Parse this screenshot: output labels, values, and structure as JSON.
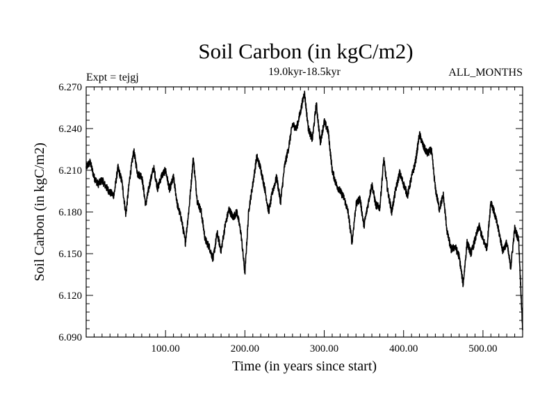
{
  "chart_data": {
    "type": "line",
    "title": "Soil Carbon (in kgC/m2)",
    "subtitle": "19.0kyr-18.5kyr",
    "left_label": "Expt = tejgj",
    "right_label": "ALL_MONTHS",
    "xlabel": "Time (in years since start)",
    "ylabel": "Soil Carbon (in kgC/m2)",
    "xlim": [
      0,
      550
    ],
    "ylim": [
      6.09,
      6.27
    ],
    "x_ticks": [
      100,
      200,
      300,
      400,
      500
    ],
    "x_tick_labels": [
      "100.00",
      "200.00",
      "300.00",
      "400.00",
      "500.00"
    ],
    "y_ticks": [
      6.09,
      6.12,
      6.15,
      6.18,
      6.21,
      6.24,
      6.27
    ],
    "y_tick_labels": [
      "6.090",
      "6.120",
      "6.150",
      "6.180",
      "6.210",
      "6.240",
      "6.270"
    ],
    "line_color": "#000000",
    "series": [
      {
        "name": "Soil Carbon",
        "x": [
          0,
          5,
          10,
          15,
          20,
          25,
          30,
          35,
          40,
          45,
          50,
          55,
          60,
          65,
          70,
          75,
          80,
          85,
          90,
          95,
          100,
          105,
          110,
          115,
          120,
          125,
          130,
          135,
          140,
          145,
          150,
          155,
          160,
          165,
          170,
          175,
          180,
          185,
          190,
          195,
          200,
          205,
          210,
          215,
          220,
          225,
          230,
          235,
          240,
          245,
          250,
          255,
          260,
          265,
          270,
          275,
          280,
          285,
          290,
          295,
          300,
          305,
          310,
          315,
          320,
          325,
          330,
          335,
          340,
          345,
          350,
          355,
          360,
          365,
          370,
          375,
          380,
          385,
          390,
          395,
          400,
          405,
          410,
          415,
          420,
          425,
          430,
          435,
          440,
          445,
          450,
          455,
          460,
          465,
          470,
          475,
          480,
          485,
          490,
          495,
          500,
          505,
          510,
          515,
          520,
          525,
          530,
          535,
          540,
          545,
          550
        ],
        "values": [
          6.212,
          6.216,
          6.205,
          6.2,
          6.203,
          6.198,
          6.194,
          6.192,
          6.212,
          6.202,
          6.178,
          6.205,
          6.224,
          6.207,
          6.206,
          6.185,
          6.2,
          6.212,
          6.197,
          6.206,
          6.21,
          6.196,
          6.205,
          6.185,
          6.175,
          6.158,
          6.185,
          6.219,
          6.188,
          6.18,
          6.16,
          6.155,
          6.146,
          6.165,
          6.152,
          6.17,
          6.182,
          6.176,
          6.18,
          6.165,
          6.136,
          6.182,
          6.2,
          6.22,
          6.211,
          6.197,
          6.18,
          6.195,
          6.205,
          6.187,
          6.213,
          6.226,
          6.243,
          6.24,
          6.252,
          6.266,
          6.24,
          6.232,
          6.258,
          6.23,
          6.245,
          6.238,
          6.21,
          6.2,
          6.195,
          6.19,
          6.18,
          6.158,
          6.185,
          6.19,
          6.17,
          6.185,
          6.2,
          6.185,
          6.183,
          6.218,
          6.195,
          6.18,
          6.196,
          6.208,
          6.2,
          6.192,
          6.205,
          6.216,
          6.236,
          6.227,
          6.222,
          6.225,
          6.197,
          6.182,
          6.192,
          6.165,
          6.153,
          6.155,
          6.148,
          6.128,
          6.158,
          6.15,
          6.16,
          6.17,
          6.16,
          6.154,
          6.188,
          6.178,
          6.166,
          6.152,
          6.158,
          6.14,
          6.168,
          6.16,
          6.095
        ]
      }
    ]
  }
}
